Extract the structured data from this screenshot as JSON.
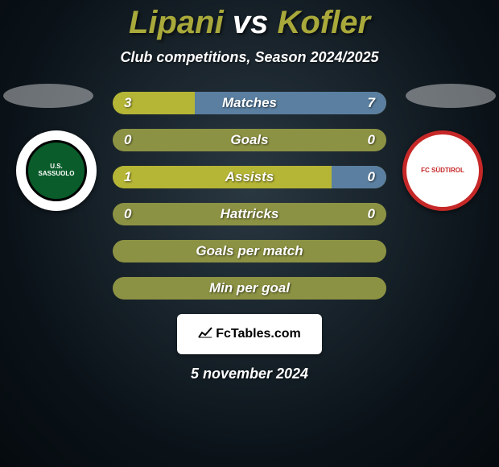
{
  "title": {
    "player1": "Lipani",
    "vs": "vs",
    "player2": "Kofler",
    "color_player": "#a9a93b",
    "color_vs": "#ffffff"
  },
  "subtitle": "Club competitions, Season 2024/2025",
  "colors": {
    "bar_track": "#8c9243",
    "bar_fill_left": "#b5b536",
    "bar_fill_right": "#5a7fa0",
    "badge_left_bg": "#ffffff",
    "badge_left_inner": "#0a5c2a",
    "badge_right_bg": "#ffffff",
    "badge_right_border": "#c62828"
  },
  "badges": {
    "left_text": "U.S. SASSUOLO",
    "right_text": "FC SÜDTIROL"
  },
  "bars": [
    {
      "label": "Matches",
      "left": "3",
      "right": "7",
      "left_pct": 30,
      "right_pct": 70,
      "show_vals": true
    },
    {
      "label": "Goals",
      "left": "0",
      "right": "0",
      "left_pct": 0,
      "right_pct": 0,
      "show_vals": true
    },
    {
      "label": "Assists",
      "left": "1",
      "right": "0",
      "left_pct": 80,
      "right_pct": 20,
      "show_vals": true
    },
    {
      "label": "Hattricks",
      "left": "0",
      "right": "0",
      "left_pct": 0,
      "right_pct": 0,
      "show_vals": true
    },
    {
      "label": "Goals per match",
      "left": "",
      "right": "",
      "left_pct": 0,
      "right_pct": 0,
      "show_vals": false
    },
    {
      "label": "Min per goal",
      "left": "",
      "right": "",
      "left_pct": 0,
      "right_pct": 0,
      "show_vals": false
    }
  ],
  "brand": "FcTables.com",
  "date": "5 november 2024"
}
